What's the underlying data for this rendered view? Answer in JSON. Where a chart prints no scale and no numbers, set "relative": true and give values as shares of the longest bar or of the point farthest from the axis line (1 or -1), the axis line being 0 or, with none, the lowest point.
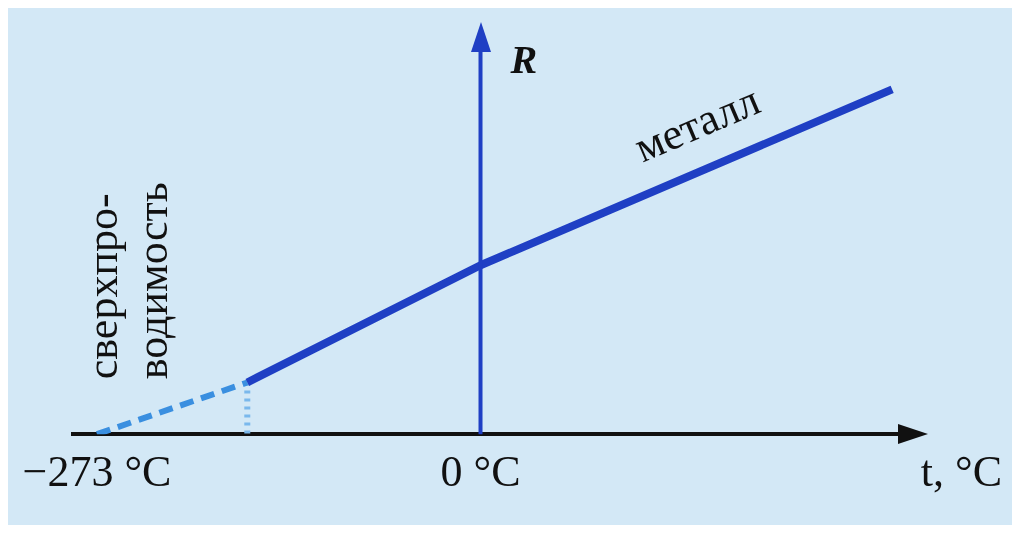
{
  "chart_data": {
    "type": "line",
    "relative": true,
    "xlabel": "t, °C",
    "ylabel": "R",
    "xlim": [
      -290,
      300
    ],
    "xticks": [
      {
        "value": -273,
        "label": "−273 °C"
      },
      {
        "value": 0,
        "label": "0 °C"
      }
    ],
    "grid": false,
    "legend": false,
    "ref_lines": [
      {
        "axis": "x",
        "value": 0,
        "color": "#1f3fc4"
      }
    ],
    "annotations": [
      "сверхпро-\nводимость"
    ],
    "series": [
      {
        "name": "металл",
        "color": "#1f3fc4",
        "x": [
          -166,
          0,
          293
        ],
        "values": [
          0.15,
          0.49,
          1
        ]
      },
      {
        "color": "#3a8fe0",
        "x": [
          -273,
          -166
        ],
        "values": [
          0,
          0.15
        ],
        "line_style": "dashed"
      },
      {
        "color": "#7ab8ec",
        "x": [
          -166,
          -166
        ],
        "values": [
          0.15,
          0
        ],
        "line_style": "dotted"
      }
    ]
  }
}
